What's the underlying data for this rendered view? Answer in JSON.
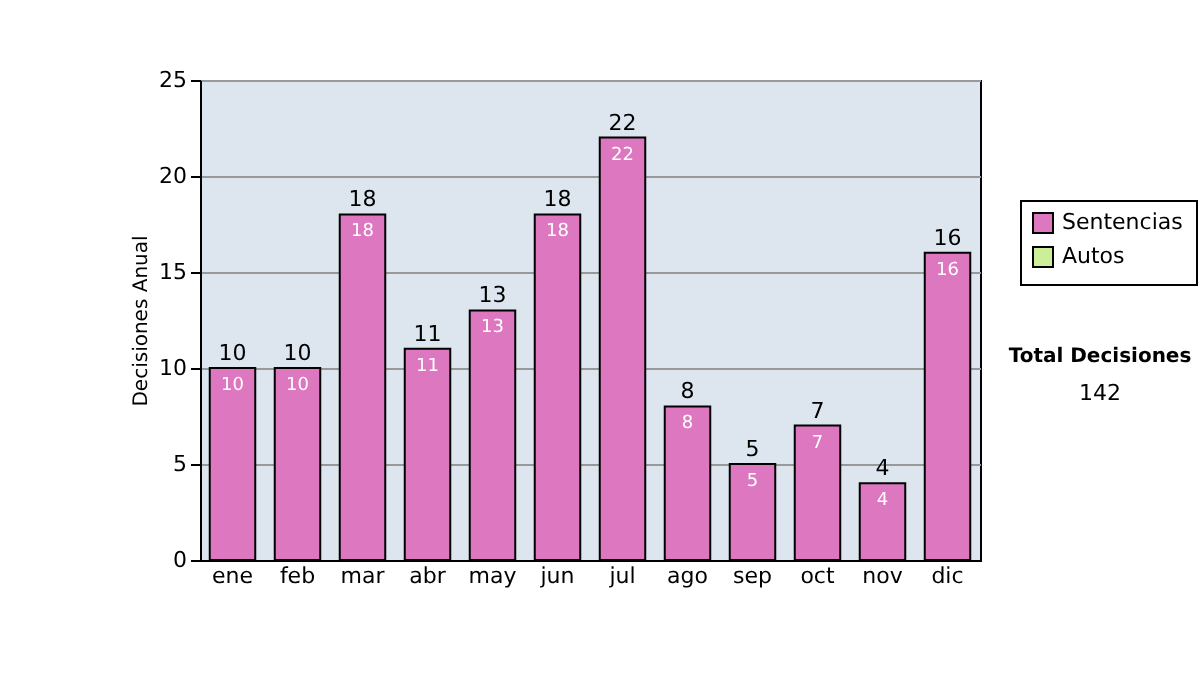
{
  "chart_data": {
    "type": "bar",
    "stacked": true,
    "ylabel": "Decisiones Anual",
    "categories": [
      "ene",
      "feb",
      "mar",
      "abr",
      "may",
      "jun",
      "jul",
      "ago",
      "sep",
      "oct",
      "nov",
      "dic"
    ],
    "series": [
      {
        "name": "Sentencias",
        "color": "#dd77c0",
        "values": [
          10,
          10,
          18,
          11,
          13,
          18,
          22,
          8,
          5,
          7,
          4,
          16
        ],
        "value_labels": [
          "10",
          "10",
          "18",
          "11",
          "13",
          "18",
          "22",
          "8",
          "5",
          "7",
          "4",
          "16"
        ]
      },
      {
        "name": "Autos",
        "color": "#ccee99",
        "values": [
          0,
          0,
          0,
          0,
          0,
          0,
          0,
          0,
          0,
          0,
          0,
          0
        ]
      }
    ],
    "totals": [
      "10",
      "10",
      "18",
      "11",
      "13",
      "18",
      "22",
      "8",
      "5",
      "7",
      "4",
      "16"
    ],
    "ylim": [
      0,
      25
    ],
    "yticks": [
      0,
      5,
      10,
      15,
      20,
      25
    ],
    "grid": "y",
    "legend": "right",
    "annotations": [
      "Total Decisiones",
      "142"
    ]
  }
}
